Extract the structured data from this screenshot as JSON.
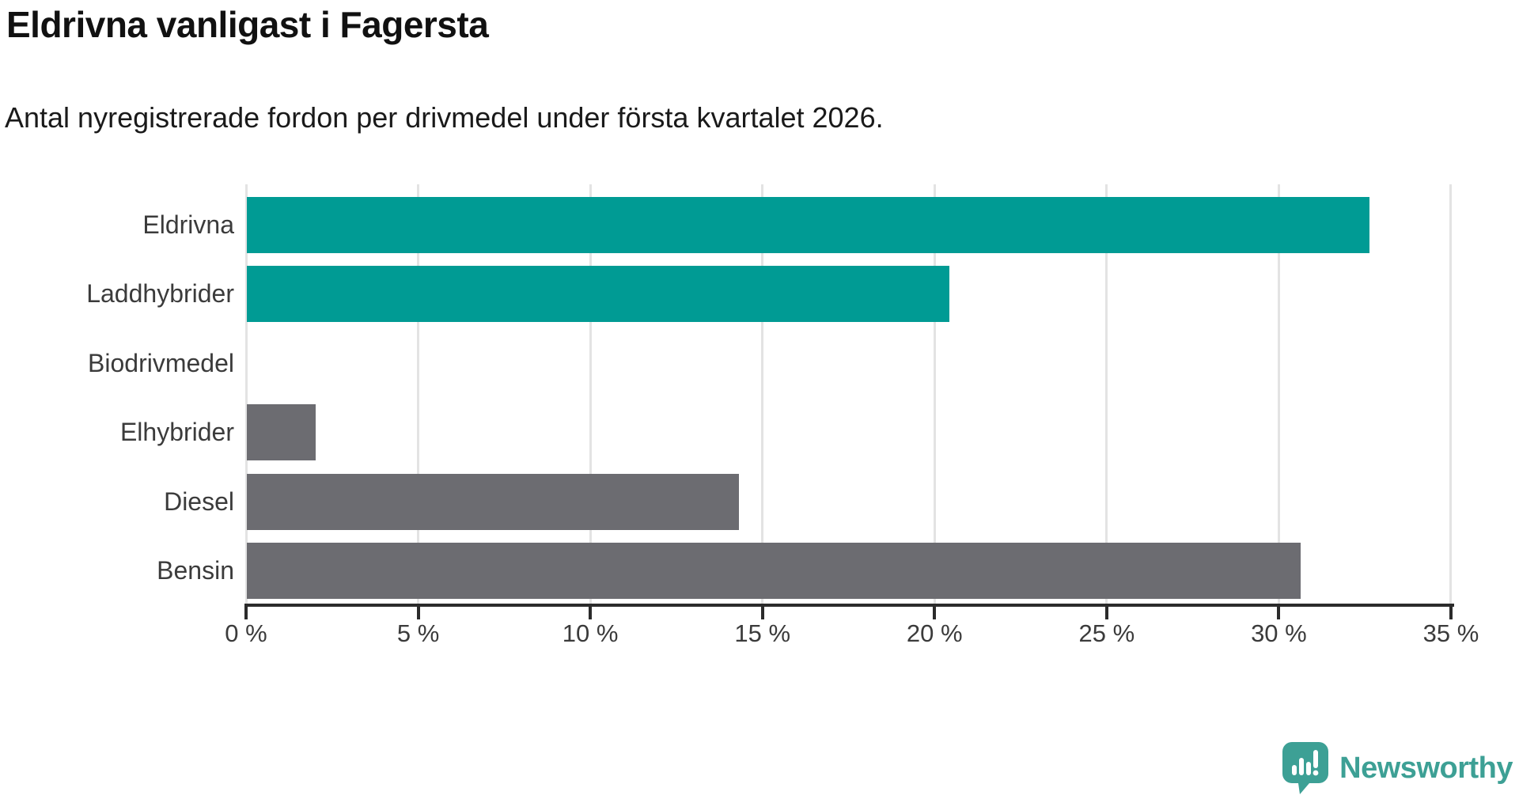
{
  "header": {
    "title": "Eldrivna vanligast i Fagersta",
    "subtitle": "Antal nyregistrerade fordon per drivmedel under första kvartalet 2026."
  },
  "chart_data": {
    "type": "bar",
    "orientation": "horizontal",
    "title": "Eldrivna vanligast i Fagersta",
    "subtitle": "Antal nyregistrerade fordon per drivmedel under första kvartalet 2026.",
    "categories": [
      "Eldrivna",
      "Laddhybrider",
      "Biodrivmedel",
      "Elhybrider",
      "Diesel",
      "Bensin"
    ],
    "values": [
      32.6,
      20.4,
      0,
      2.0,
      14.3,
      30.6
    ],
    "unit": "%",
    "bar_colors": [
      "#009B94",
      "#009B94",
      "#6C6C71",
      "#6C6C71",
      "#6C6C71",
      "#6C6C71"
    ],
    "highlighted_categories": [
      "Eldrivna",
      "Laddhybrider"
    ],
    "xlim": [
      0,
      35
    ],
    "x_tick_values": [
      0,
      5,
      10,
      15,
      20,
      25,
      30,
      35
    ],
    "x_tick_labels": [
      "0 %",
      "5 %",
      "10 %",
      "15 %",
      "20 %",
      "25 %",
      "30 %",
      "35 %"
    ],
    "grid": true,
    "legend": "none",
    "xlabel": "",
    "ylabel": ""
  },
  "colors": {
    "highlight": "#009B94",
    "neutral": "#6C6C71",
    "gridline": "#E3E3E3",
    "axis": "#2B2B2B",
    "labels": "#3B3B3B",
    "title": "#111111",
    "brand_teal": "#3DA095"
  },
  "branding": {
    "logo_text": "Newsworthy",
    "logo_icon": "speech-bubble-barchart-icon"
  }
}
